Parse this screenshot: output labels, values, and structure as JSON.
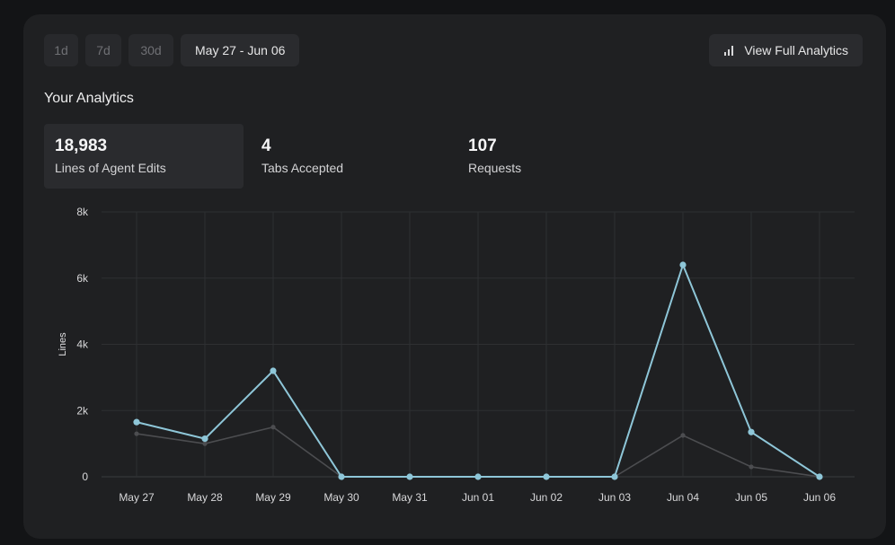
{
  "toolbar": {
    "ranges": [
      "1d",
      "7d",
      "30d"
    ],
    "date_range": "May 27 - Jun 06",
    "full_analytics_label": "View Full Analytics",
    "full_analytics_icon": "bar-chart-icon"
  },
  "section_title": "Your Analytics",
  "stats": [
    {
      "value": "18,983",
      "label": "Lines of Agent Edits"
    },
    {
      "value": "4",
      "label": "Tabs Accepted"
    },
    {
      "value": "107",
      "label": "Requests"
    }
  ],
  "colors": {
    "primary_series": "#8ec6d8",
    "secondary_series": "#4c4d50"
  },
  "chart_data": {
    "type": "line",
    "categories": [
      "May 27",
      "May 28",
      "May 29",
      "May 30",
      "May 31",
      "Jun 01",
      "Jun 02",
      "Jun 03",
      "Jun 04",
      "Jun 05",
      "Jun 06"
    ],
    "series": [
      {
        "values": [
          1650,
          1150,
          3200,
          0,
          0,
          0,
          0,
          0,
          6400,
          1350,
          0
        ]
      },
      {
        "values": [
          1300,
          1000,
          1500,
          0,
          0,
          0,
          0,
          0,
          1250,
          300,
          0
        ]
      }
    ],
    "ylabel": "Lines",
    "ylim": [
      0,
      8000
    ],
    "yticks": [
      0,
      2000,
      4000,
      6000,
      8000
    ],
    "ytick_labels": [
      "0",
      "2k",
      "4k",
      "6k",
      "8k"
    ],
    "grid": true
  }
}
